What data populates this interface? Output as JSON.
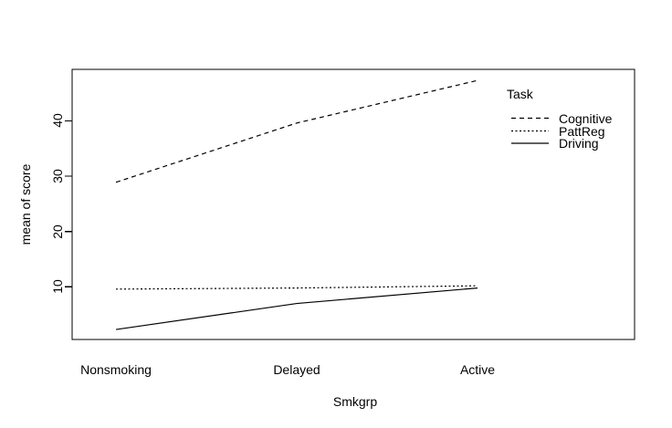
{
  "figure": {
    "background": "#ffffff",
    "ink_color": "#000000"
  },
  "chart_data": {
    "type": "line",
    "title": "",
    "xlabel": "Smkgrp",
    "ylabel": "mean of score",
    "categories": [
      "Nonsmoking",
      "Delayed",
      "Active"
    ],
    "series": [
      {
        "name": "Cognitive",
        "style": "dashed",
        "values": [
          28.9,
          39.6,
          47.3
        ]
      },
      {
        "name": "PattReg",
        "style": "dotted",
        "values": [
          9.6,
          9.8,
          10.2
        ]
      },
      {
        "name": "Driving",
        "style": "solid",
        "values": [
          2.3,
          7.0,
          9.8
        ]
      }
    ],
    "yticks": [
      10,
      20,
      30,
      40
    ],
    "ylim": [
      0.5,
      49.3
    ],
    "grid": false,
    "legend": {
      "title": "Task",
      "position": "top-right-inside"
    }
  }
}
